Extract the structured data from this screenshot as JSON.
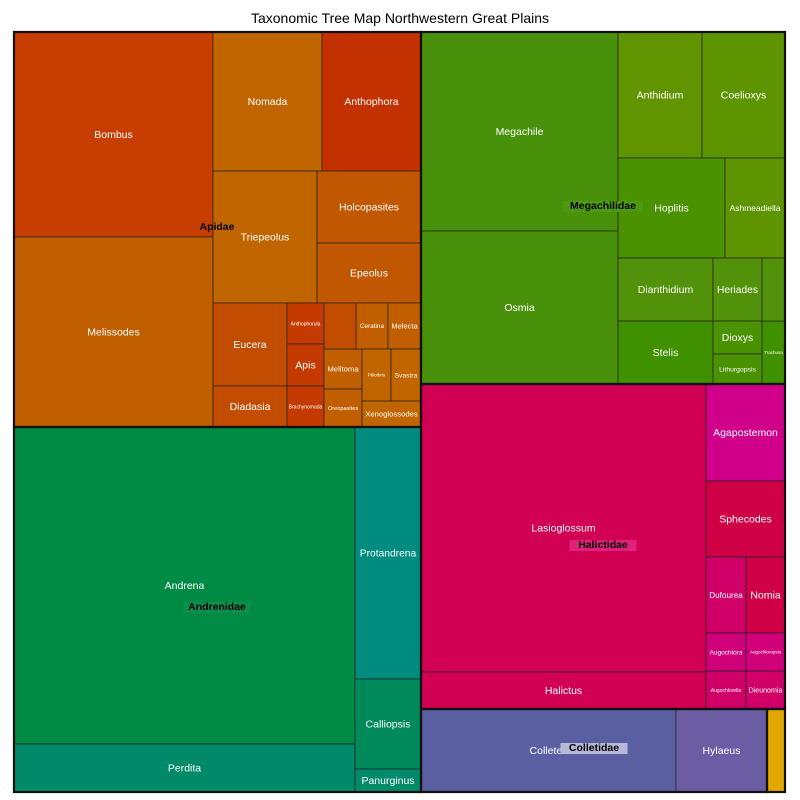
{
  "chart_data": {
    "type": "treemap",
    "title": "Taxonomic Tree Map Northwestern Great Plains",
    "value_note": "Relative areas of genera estimated from the figure (arbitrary units).",
    "families": [
      {
        "name": "Apidae",
        "genera": [
          {
            "name": "Bombus",
            "value": 81,
            "color": "#c73e00"
          },
          {
            "name": "Melissodes",
            "value": 77,
            "color": "#c15e00"
          },
          {
            "name": "Nomada",
            "value": 26,
            "color": "#c06500"
          },
          {
            "name": "Anthophora",
            "value": 27,
            "color": "#c43100"
          },
          {
            "name": "Triepeolus",
            "value": 28,
            "color": "#c06500"
          },
          {
            "name": "Holcopasites",
            "value": 15,
            "color": "#c15800"
          },
          {
            "name": "Epeolus",
            "value": 12,
            "color": "#c15800"
          },
          {
            "name": "Eucera",
            "value": 12.5,
            "color": "#c24c00"
          },
          {
            "name": "Diadasia",
            "value": 6.6,
            "color": "#c24c00"
          },
          {
            "name": "Anthophorula",
            "value": 2.2,
            "color": "#c43a00"
          },
          {
            "name": "Apis",
            "value": 2.4,
            "color": "#c43a00"
          },
          {
            "name": "Brachynomada",
            "value": 2.2,
            "color": "#c43a00"
          },
          {
            "name": "Melitoma",
            "value": 2.5,
            "color": "#c15e00"
          },
          {
            "name": "Oreopasites",
            "value": 1.5,
            "color": "#c15e00"
          },
          {
            "name": "Ceratina",
            "value": 1.3,
            "color": "#c15e00"
          },
          {
            "name": "Melecta",
            "value": 1.2,
            "color": "#c15e00"
          },
          {
            "name": "Ptilothrix",
            "value": 1.2,
            "color": "#c06500"
          },
          {
            "name": "Svastra",
            "value": 1.2,
            "color": "#c06500"
          },
          {
            "name": "Xenoglossodes",
            "value": 1.0,
            "color": "#c06500"
          }
        ]
      },
      {
        "name": "Andrenidae",
        "genera": [
          {
            "name": "Andrena",
            "value": 140,
            "color": "#008b45"
          },
          {
            "name": "Perdita",
            "value": 22,
            "color": "#008a6a"
          },
          {
            "name": "Protandrena",
            "value": 21,
            "color": "#008c7e"
          },
          {
            "name": "Calliopsis",
            "value": 8,
            "color": "#008a5b"
          },
          {
            "name": "Panurginus",
            "value": 2,
            "color": "#008a6a"
          }
        ]
      },
      {
        "name": "Megachilidae",
        "genera": [
          {
            "name": "Megachile",
            "value": 55,
            "color": "#49910a"
          },
          {
            "name": "Osmia",
            "value": 47,
            "color": "#49910a"
          },
          {
            "name": "Anthidium",
            "value": 16,
            "color": "#609400"
          },
          {
            "name": "Coelioxys",
            "value": 16,
            "color": "#5d9400"
          },
          {
            "name": "Hoplitis",
            "value": 13,
            "color": "#4a9200"
          },
          {
            "name": "Ashmeadiella",
            "value": 8,
            "color": "#5d9400"
          },
          {
            "name": "Dianthidium",
            "value": 8.5,
            "color": "#51920a"
          },
          {
            "name": "Heriades",
            "value": 3,
            "color": "#51920a"
          },
          {
            "name": "Stelis",
            "value": 8,
            "color": "#3f9100"
          },
          {
            "name": "Dioxys",
            "value": 2.1,
            "color": "#4a9200"
          },
          {
            "name": "Lithurgopsis",
            "value": 1.6,
            "color": "#4a9200"
          },
          {
            "name": "Trachusa",
            "value": 1.0,
            "color": "#3f9100"
          },
          {
            "name": "",
            "value": 1.6,
            "color": "#51920a"
          }
        ]
      },
      {
        "name": "Halictidae",
        "genera": [
          {
            "name": "Lasioglossum",
            "value": 107,
            "color": "#d10052"
          },
          {
            "name": "Halictus",
            "value": 13,
            "color": "#d10052"
          },
          {
            "name": "Agapostemon",
            "value": 14,
            "color": "#d0008a"
          },
          {
            "name": "Sphecodes",
            "value": 11,
            "color": "#cf0045"
          },
          {
            "name": "Dufourea",
            "value": 4.2,
            "color": "#d00068"
          },
          {
            "name": "Nomia",
            "value": 3.8,
            "color": "#cf0045"
          },
          {
            "name": "Augochlora",
            "value": 1.7,
            "color": "#d0007b"
          },
          {
            "name": "Augochloropsis",
            "value": 1.6,
            "color": "#d0007b"
          },
          {
            "name": "Augochlorella",
            "value": 1.7,
            "color": "#d00068"
          },
          {
            "name": "Dieunomia",
            "value": 1.6,
            "color": "#d00068"
          }
        ]
      },
      {
        "name": "Colletidae",
        "genera": [
          {
            "name": "Colletes",
            "value": 20,
            "color": "#5a5fa2"
          },
          {
            "name": "Hylaeus",
            "value": 7.5,
            "color": "#6c5ca3"
          }
        ]
      },
      {
        "name": "",
        "genera": [
          {
            "name": "",
            "value": 1.2,
            "color": "#e0a800"
          }
        ]
      }
    ]
  }
}
